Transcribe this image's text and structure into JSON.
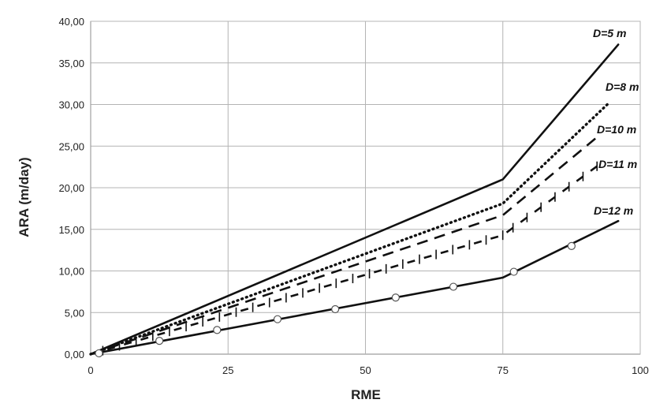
{
  "chart_data": {
    "type": "line",
    "xlabel": "RME",
    "ylabel": "ARA (m/day)",
    "xlim": [
      0,
      100
    ],
    "ylim": [
      0,
      40
    ],
    "xticks": [
      "0",
      "25",
      "50",
      "75",
      "100"
    ],
    "yticks": [
      "0,00",
      "5,00",
      "10,00",
      "15,00",
      "20,00",
      "25,00",
      "30,00",
      "35,00",
      "40,00"
    ],
    "grid": true,
    "legend": "none",
    "series": [
      {
        "name": "D=5 m",
        "style": "solid",
        "color": "#111111",
        "points": [
          [
            0,
            0
          ],
          [
            75,
            21
          ],
          [
            96,
            37.2
          ]
        ]
      },
      {
        "name": "D=8 m",
        "style": "dotted",
        "color": "#111111",
        "points": [
          [
            0,
            0
          ],
          [
            75,
            18.1
          ],
          [
            94,
            30
          ]
        ]
      },
      {
        "name": "D=10 m",
        "style": "dashed",
        "color": "#111111",
        "points": [
          [
            0,
            0
          ],
          [
            75,
            16.7
          ],
          [
            92,
            26
          ]
        ]
      },
      {
        "name": "D=11 m",
        "style": "dash-cross",
        "color": "#111111",
        "points": [
          [
            0,
            0
          ],
          [
            75,
            14.3
          ],
          [
            93,
            23
          ]
        ]
      },
      {
        "name": "D=12 m",
        "style": "solid-circles",
        "color": "#111111",
        "points": [
          [
            0,
            0
          ],
          [
            75,
            9.2
          ],
          [
            96,
            16
          ]
        ],
        "markers": [
          [
            1.5,
            0.1
          ],
          [
            12.5,
            1.6
          ],
          [
            23,
            2.9
          ],
          [
            34,
            4.2
          ],
          [
            44.5,
            5.4
          ],
          [
            55.5,
            6.8
          ],
          [
            66,
            8.1
          ],
          [
            77,
            9.9
          ],
          [
            87.5,
            13
          ]
        ]
      }
    ]
  }
}
